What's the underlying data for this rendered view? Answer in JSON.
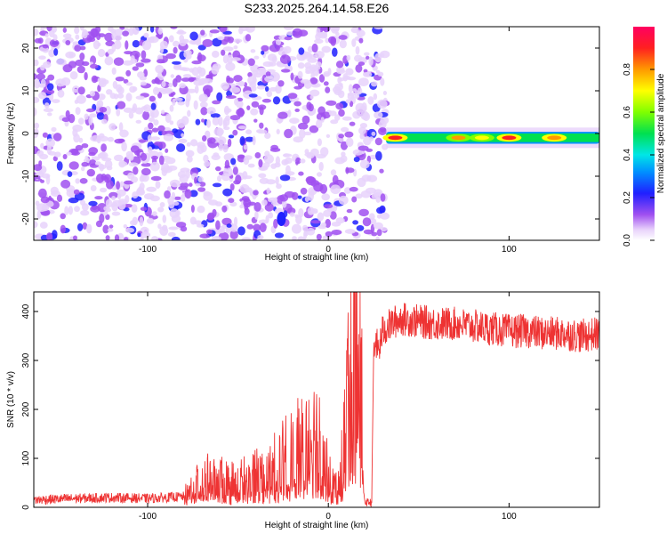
{
  "chart_data": [
    {
      "type": "heatmap",
      "title": "S233.2025.264.14.58.E26",
      "xlabel": "Height of straight line (km)",
      "ylabel": "Frequency (Hz)",
      "xlim": [
        -163,
        150
      ],
      "ylim": [
        -25,
        25
      ],
      "xticks": [
        -100,
        0,
        100
      ],
      "yticks": [
        -20,
        -10,
        0,
        10,
        20
      ],
      "noise_region_x": [
        -163,
        32
      ],
      "noise_level_typical": [
        0.05,
        0.25
      ],
      "signal_band": {
        "x_start": 32,
        "x_end": 150,
        "frequency_hz": -1,
        "width_hz": 2,
        "hotspots": [
          {
            "x": 37,
            "amp": 0.95
          },
          {
            "x": 72,
            "amp": 0.8
          },
          {
            "x": 85,
            "amp": 0.75
          },
          {
            "x": 100,
            "amp": 0.9
          },
          {
            "x": 125,
            "amp": 0.85
          }
        ]
      },
      "colorbar": {
        "label": "Normalized spectral amplitude",
        "ticks": [
          0.0,
          0.2,
          0.4,
          0.6,
          0.8
        ],
        "range": [
          0,
          1
        ]
      }
    },
    {
      "type": "line",
      "xlabel": "Height of straight line (km)",
      "ylabel": "SNR (10 * v/v)",
      "xlim": [
        -163,
        150
      ],
      "ylim": [
        0,
        440
      ],
      "xticks": [
        -100,
        0,
        100
      ],
      "yticks": [
        0,
        100,
        200,
        300,
        400
      ],
      "color": "#ee3333",
      "series": [
        {
          "name": "SNR",
          "x": [
            -163,
            -140,
            -120,
            -100,
            -80,
            -75,
            -70,
            -60,
            -50,
            -40,
            -30,
            -20,
            -10,
            -5,
            0,
            5,
            8,
            10,
            12,
            15,
            18,
            20,
            22,
            24,
            25,
            26,
            28,
            30,
            35,
            40,
            50,
            60,
            70,
            80,
            90,
            100,
            110,
            120,
            130,
            140,
            150
          ],
          "values": [
            15,
            18,
            20,
            18,
            22,
            40,
            60,
            55,
            50,
            70,
            80,
            110,
            140,
            150,
            60,
            40,
            100,
            200,
            290,
            320,
            300,
            10,
            10,
            10,
            300,
            340,
            320,
            360,
            375,
            385,
            380,
            375,
            375,
            370,
            365,
            360,
            360,
            355,
            355,
            350,
            355
          ]
        }
      ]
    }
  ]
}
